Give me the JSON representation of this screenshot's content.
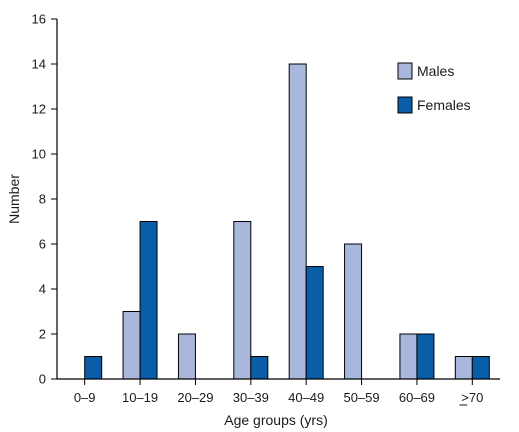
{
  "chart_data": {
    "type": "bar",
    "categories": [
      "0–9",
      "10–19",
      "20–29",
      "30–39",
      "40–49",
      "50–59",
      "60–69",
      ">70"
    ],
    "series": [
      {
        "name": "Males",
        "values": [
          0,
          3,
          2,
          7,
          14,
          6,
          2,
          1
        ],
        "color": "#a9b7dc"
      },
      {
        "name": "Females",
        "values": [
          1,
          7,
          0,
          1,
          5,
          0,
          2,
          1
        ],
        "color": "#0a5ea8"
      }
    ],
    "xlabel": "Age groups (yrs)",
    "ylabel": "Number",
    "ylim": [
      0,
      16
    ],
    "yticks": [
      0,
      2,
      4,
      6,
      8,
      10,
      12,
      14,
      16
    ],
    "grid": false,
    "legend_position": "top-right"
  }
}
